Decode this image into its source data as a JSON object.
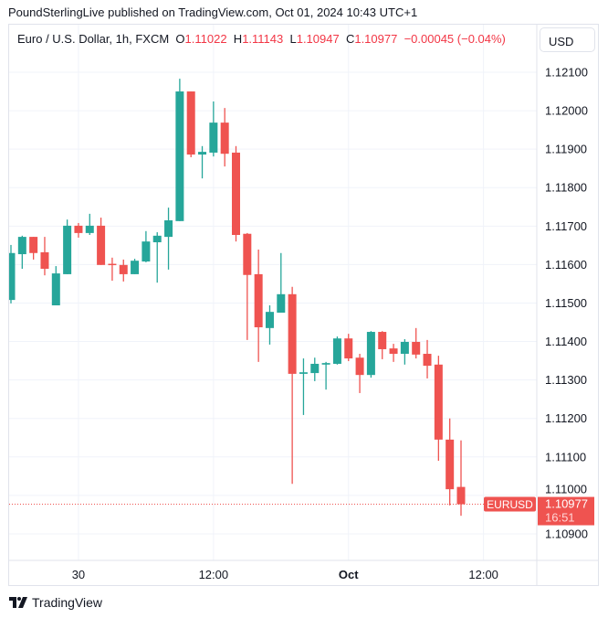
{
  "header": {
    "published": "PoundSterlingLive published on TradingView.com, Oct 01, 2024 10:43 UTC+1"
  },
  "legend": {
    "symbol": "Euro / U.S. Dollar, 1h, FXCM",
    "o_label": "O",
    "o": "1.11022",
    "h_label": "H",
    "h": "1.11143",
    "l_label": "L",
    "l": "1.10947",
    "c_label": "C",
    "c": "1.10977",
    "change": "−0.00045 (−0.04%)"
  },
  "currency_button": "USD",
  "last_price": {
    "symbol": "EURUSD",
    "price": "1.10977",
    "countdown": "16:51"
  },
  "footer": {
    "brand": "TradingView",
    "logo_icon": "tradingview-logo-icon"
  },
  "colors": {
    "up": "#26a69a",
    "down": "#ef5350",
    "grid": "#f0f3fa",
    "text": "#131722"
  },
  "chart_data": {
    "type": "candlestick",
    "interval": "1h",
    "ylim": [
      1.1084,
      1.1213
    ],
    "yticks": [
      1.121,
      1.12,
      1.119,
      1.118,
      1.117,
      1.116,
      1.115,
      1.114,
      1.113,
      1.112,
      1.111,
      1.11,
      1.109
    ],
    "ytick_labels": [
      "1.12100",
      "1.12000",
      "1.11900",
      "1.11800",
      "1.11700",
      "1.11600",
      "1.11500",
      "1.11400",
      "1.11300",
      "1.11200",
      "1.11100",
      "1.11000",
      "1.10900"
    ],
    "xtick_labels": [
      {
        "label": "30",
        "index": 6,
        "bold": false
      },
      {
        "label": "12:00",
        "index": 18,
        "bold": false
      },
      {
        "label": "Oct",
        "index": 30,
        "bold": true
      },
      {
        "label": "12:00",
        "index": 42,
        "bold": false
      }
    ],
    "grid": true,
    "candles": [
      [
        1.11508,
        1.11651,
        1.11499,
        1.1163
      ],
      [
        1.11627,
        1.11675,
        1.11589,
        1.11672
      ],
      [
        1.11672,
        1.11672,
        1.11613,
        1.1163
      ],
      [
        1.11632,
        1.11672,
        1.11572,
        1.11589
      ],
      [
        1.11494,
        1.11596,
        1.11494,
        1.11577
      ],
      [
        1.11575,
        1.11717,
        1.11575,
        1.11701
      ],
      [
        1.11701,
        1.11708,
        1.1167,
        1.11682
      ],
      [
        1.11682,
        1.11732,
        1.11677,
        1.11701
      ],
      [
        1.11701,
        1.11722,
        1.11599,
        1.11599
      ],
      [
        1.11602,
        1.11618,
        1.11558,
        1.11599
      ],
      [
        1.11599,
        1.11613,
        1.11556,
        1.11575
      ],
      [
        1.11575,
        1.11615,
        1.11575,
        1.1161
      ],
      [
        1.11608,
        1.11687,
        1.11606,
        1.1166
      ],
      [
        1.11658,
        1.11684,
        1.11553,
        1.11675
      ],
      [
        1.11672,
        1.11748,
        1.11587,
        1.11715
      ],
      [
        1.11713,
        1.12083,
        1.11713,
        1.1205
      ],
      [
        1.1205,
        1.1205,
        1.11879,
        1.11886
      ],
      [
        1.11886,
        1.11908,
        1.11824,
        1.11893
      ],
      [
        1.11891,
        1.12024,
        1.11881,
        1.11969
      ],
      [
        1.11969,
        1.12007,
        1.11855,
        1.11888
      ],
      [
        1.11891,
        1.11908,
        1.1166,
        1.11677
      ],
      [
        1.1168,
        1.11682,
        1.11404,
        1.11573
      ],
      [
        1.11575,
        1.11639,
        1.11347,
        1.11437
      ],
      [
        1.11435,
        1.11494,
        1.11392,
        1.11477
      ],
      [
        1.11475,
        1.1163,
        1.11475,
        1.11523
      ],
      [
        1.11523,
        1.11542,
        1.1103,
        1.11316
      ],
      [
        1.11316,
        1.11356,
        1.11209,
        1.1132
      ],
      [
        1.11318,
        1.11358,
        1.11297,
        1.11342
      ],
      [
        1.1134,
        1.11347,
        1.11275,
        1.11344
      ],
      [
        1.11342,
        1.11413,
        1.1134,
        1.11408
      ],
      [
        1.11408,
        1.1142,
        1.11349,
        1.11356
      ],
      [
        1.11358,
        1.11368,
        1.11266,
        1.11313
      ],
      [
        1.11313,
        1.11427,
        1.11306,
        1.11425
      ],
      [
        1.11425,
        1.11427,
        1.11354,
        1.1138
      ],
      [
        1.11382,
        1.11394,
        1.11347,
        1.11368
      ],
      [
        1.11368,
        1.11406,
        1.1134,
        1.11399
      ],
      [
        1.11399,
        1.11435,
        1.11356,
        1.11366
      ],
      [
        1.11368,
        1.11404,
        1.11304,
        1.11337
      ],
      [
        1.1134,
        1.11363,
        1.1109,
        1.11145
      ],
      [
        1.11145,
        1.112,
        1.10974,
        1.11016
      ],
      [
        1.11022,
        1.11143,
        1.10947,
        1.10977
      ]
    ],
    "candle_format": [
      "open",
      "high",
      "low",
      "close"
    ],
    "last_price": 1.10977
  }
}
